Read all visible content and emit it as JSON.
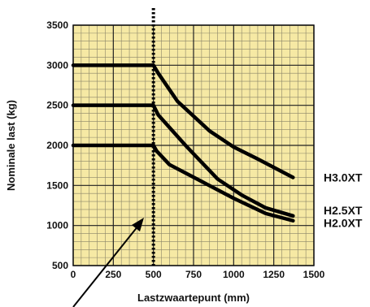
{
  "chart_data": {
    "type": "line",
    "title": "",
    "xlabel": "Lastzwaartepunt (mm)",
    "ylabel": "Nominale last (kg)",
    "xlim": [
      0,
      1500
    ],
    "ylim": [
      500,
      3500
    ],
    "x_ticks": [
      "0",
      "250",
      "500",
      "750",
      "1000",
      "1250",
      "1500"
    ],
    "y_ticks": [
      "500",
      "1000",
      "1500",
      "2000",
      "2500",
      "3000",
      "3500"
    ],
    "grid": true,
    "reference_line_x": 500,
    "series": [
      {
        "name": "H3.0XT",
        "x": [
          0,
          500,
          530,
          650,
          850,
          1000,
          1150,
          1370
        ],
        "y": [
          3000,
          3000,
          2900,
          2550,
          2180,
          1980,
          1830,
          1600
        ]
      },
      {
        "name": "H2.5XT",
        "x": [
          0,
          500,
          530,
          700,
          900,
          1050,
          1200,
          1370
        ],
        "y": [
          2500,
          2500,
          2380,
          2000,
          1580,
          1380,
          1220,
          1120
        ]
      },
      {
        "name": "H2.0XT",
        "x": [
          0,
          500,
          520,
          600,
          800,
          1000,
          1200,
          1370
        ],
        "y": [
          2000,
          2000,
          1930,
          1760,
          1550,
          1340,
          1150,
          1060
        ]
      }
    ]
  }
}
